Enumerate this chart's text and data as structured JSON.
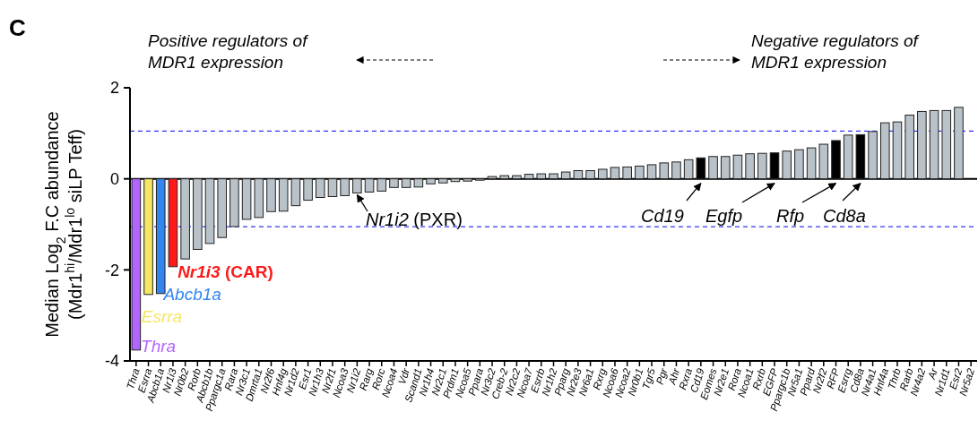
{
  "chart_data": {
    "type": "bar",
    "title": "C",
    "ylabel": "Median Log$_{2}$ F.C abundance\n(Mdr1$^{hi}$/Mdr1$^{lo}$ siLP Teff)",
    "categories": [
      "Thra",
      "Esrra",
      "Abcb1a",
      "Nr1i3",
      "Nr0b2",
      "Rorb",
      "Abcb1b",
      "Ppargc1a",
      "Rara",
      "Nr3c1",
      "Dmrta1",
      "Nr2f6",
      "Hnf4g",
      "Nr1d2",
      "Esr1",
      "Nr1h3",
      "Nr2f1",
      "Ncoa3",
      "Nr1i2",
      "Rarg",
      "Rorc",
      "Ncoa4",
      "Vdr",
      "Scand1",
      "Nr1h4",
      "Nr2c1",
      "Prdm1",
      "Ncoa5",
      "Ppara",
      "Nr3c2",
      "Creb-2",
      "Nr2c2",
      "Ncoa7",
      "Esrrb",
      "Nr1h2",
      "Pparg",
      "Nr2e3",
      "Nr6a1",
      "Rxrg",
      "Ncoa6",
      "Ncoa2",
      "Nr0b1",
      "Tgr5",
      "Pgr",
      "Ahr",
      "Rxra",
      "Cd19",
      "Eomes",
      "Nr2e1",
      "Rora",
      "Ncoa1",
      "Rxrb",
      "EGFP",
      "Ppargc1b",
      "Nr5a1",
      "Ppard",
      "Nr2f2",
      "RFP",
      "Esrrg",
      "Cd8a",
      "Nr4a1",
      "Hnf4a",
      "Thrb",
      "Rarb",
      "Nr4a2",
      "Ar",
      "Nr1d1",
      "Esr2",
      "Nr5a2"
    ],
    "values": [
      -3.76,
      -2.54,
      -2.52,
      -1.93,
      -1.76,
      -1.55,
      -1.42,
      -1.29,
      -1.05,
      -0.89,
      -0.85,
      -0.72,
      -0.71,
      -0.59,
      -0.47,
      -0.41,
      -0.39,
      -0.37,
      -0.31,
      -0.29,
      -0.27,
      -0.19,
      -0.19,
      -0.18,
      -0.11,
      -0.09,
      -0.06,
      -0.05,
      -0.03,
      0.05,
      0.07,
      0.07,
      0.1,
      0.11,
      0.11,
      0.15,
      0.18,
      0.18,
      0.21,
      0.25,
      0.26,
      0.28,
      0.31,
      0.35,
      0.37,
      0.42,
      0.46,
      0.49,
      0.49,
      0.52,
      0.55,
      0.56,
      0.57,
      0.61,
      0.64,
      0.68,
      0.76,
      0.84,
      0.96,
      0.97,
      1.04,
      1.23,
      1.25,
      1.4,
      1.48,
      1.5,
      1.5,
      1.57,
      0
    ],
    "colors": [
      "#b266ff",
      "#f5e663",
      "#3385f0",
      "#ff1a1a",
      "#b8c2c8",
      "#b8c2c8",
      "#b8c2c8",
      "#b8c2c8",
      "#b8c2c8",
      "#b8c2c8",
      "#b8c2c8",
      "#b8c2c8",
      "#b8c2c8",
      "#b8c2c8",
      "#b8c2c8",
      "#b8c2c8",
      "#b8c2c8",
      "#b8c2c8",
      "#b8c2c8",
      "#b8c2c8",
      "#b8c2c8",
      "#b8c2c8",
      "#b8c2c8",
      "#b8c2c8",
      "#b8c2c8",
      "#b8c2c8",
      "#b8c2c8",
      "#b8c2c8",
      "#b8c2c8",
      "#b8c2c8",
      "#b8c2c8",
      "#b8c2c8",
      "#b8c2c8",
      "#b8c2c8",
      "#b8c2c8",
      "#b8c2c8",
      "#b8c2c8",
      "#b8c2c8",
      "#b8c2c8",
      "#b8c2c8",
      "#b8c2c8",
      "#b8c2c8",
      "#b8c2c8",
      "#b8c2c8",
      "#b8c2c8",
      "#b8c2c8",
      "#000000",
      "#b8c2c8",
      "#b8c2c8",
      "#b8c2c8",
      "#b8c2c8",
      "#b8c2c8",
      "#000000",
      "#b8c2c8",
      "#b8c2c8",
      "#b8c2c8",
      "#b8c2c8",
      "#000000",
      "#b8c2c8",
      "#000000",
      "#b8c2c8",
      "#b8c2c8",
      "#b8c2c8",
      "#b8c2c8",
      "#b8c2c8",
      "#b8c2c8",
      "#b8c2c8",
      "#b8c2c8",
      "#b8c2c8"
    ],
    "ylim": [
      -4,
      2
    ],
    "yticks": [
      -4,
      -2,
      0,
      2
    ],
    "ref_lines": [
      {
        "axis": "y",
        "value": 1.05,
        "color": "#3333ff",
        "line_style": "dashed"
      },
      {
        "axis": "y",
        "value": -1.05,
        "color": "#3333ff",
        "line_style": "dashed"
      },
      {
        "axis": "y",
        "value": 0,
        "color": "#000000",
        "line_style": "solid"
      }
    ],
    "annotations": [
      "Positive regulators of\nMDR1 expression",
      "Negative regulators of\nMDR1 expression",
      {
        "text": "Nr1i2 (PXR)",
        "x": "Nr1i2",
        "y": -0.31
      },
      {
        "text": "Cd19",
        "x": "Cd19",
        "y": 0
      },
      {
        "text": "Egfp",
        "x": "EGFP",
        "y": 0
      },
      {
        "text": "Rfp",
        "x": "RFP",
        "y": 0
      },
      {
        "text": "Cd8a",
        "x": "Cd8a",
        "y": 0
      },
      {
        "text": "Nr1i3 (CAR)",
        "x": "Nr1i3",
        "y": -1.93
      },
      {
        "text": "Abcb1a",
        "x": "Abcb1a",
        "y": -2.52
      },
      {
        "text": "Esrra",
        "x": "Esrra",
        "y": -2.54
      },
      {
        "text": "Thra",
        "x": "Thra",
        "y": -3.76
      }
    ]
  }
}
